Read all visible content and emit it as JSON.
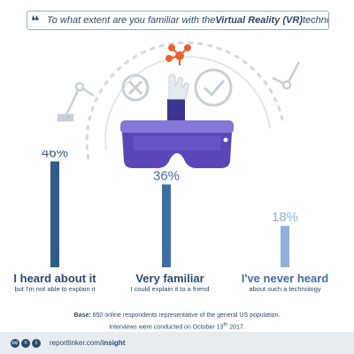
{
  "question": {
    "prefix": "To what extent are you familiar with the ",
    "highlight": "Virtual Reality (VR)",
    "suffix": " technology?"
  },
  "chart_data": {
    "type": "bar",
    "categories": [
      "I heard about it",
      "Very familiar",
      "I've never heard"
    ],
    "subtitles": [
      "but I'm not able to explain it",
      "I could explain it to a friend",
      "about such a technology"
    ],
    "values": [
      46,
      36,
      18
    ],
    "value_labels": [
      "46%",
      "36%",
      "18%"
    ],
    "unit": "%",
    "ylim": [
      0,
      50
    ],
    "colors": [
      "#2e5a8a",
      "#3f6da6",
      "#8fb1dc"
    ]
  },
  "footnote": {
    "base_label": "Base:",
    "base_text": " 650 online respondents representative of the general US population.",
    "dates_prefix": "Interviews were conducted on October 13",
    "dates_sup": "th",
    "dates_suffix": " 2017."
  },
  "footer": {
    "icons": [
      "creative-commons-icon",
      "no-derivatives-icon",
      "attribution-icon"
    ],
    "icon_glyphs": [
      "cc",
      "=",
      "i"
    ],
    "link_prefix": "reportlinker.com/",
    "link_bold": "insight"
  },
  "colors": {
    "navy": "#2b4a6f",
    "headset": "#5b46b8",
    "headset_light": "#8577d6",
    "hand": "#3d3391",
    "network": "#e8622c",
    "gray_decor": "#c9cfd8"
  }
}
